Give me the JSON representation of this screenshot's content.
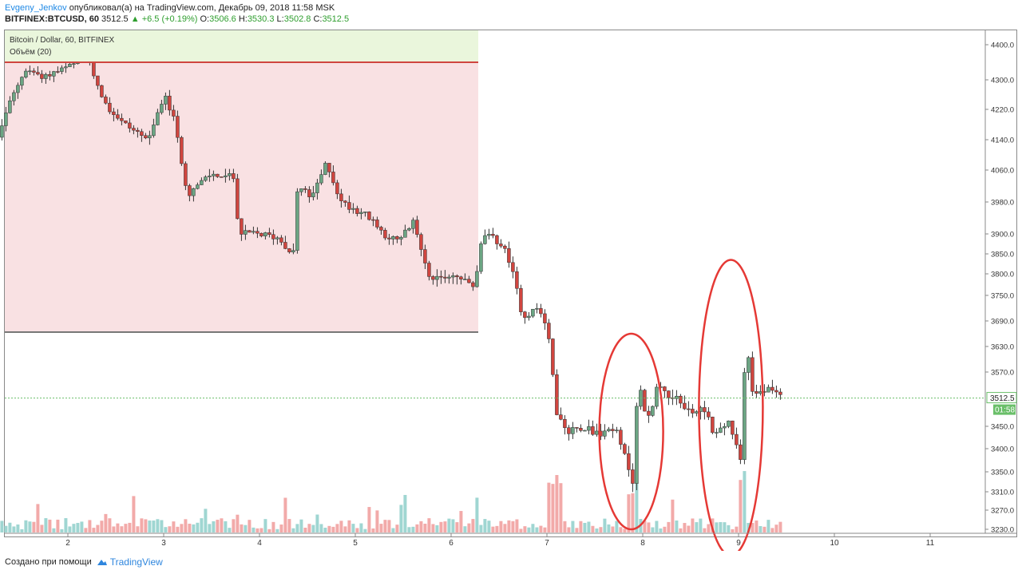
{
  "header": {
    "author": "Evgeny_Jenkov",
    "published_text": "опубликовал(а) на TradingView.com, Декабрь 09, 2018 11:58 MSK",
    "symbol": "BITFINEX:BTCUSD, 60",
    "last": "3512.5",
    "change": "▲ +6.5 (+0.19%)",
    "o_label": "O:",
    "o_value": "3506.6",
    "h_label": "H:",
    "h_value": "3530.3",
    "l_label": "L:",
    "l_value": "3502.8",
    "c_label": "C:",
    "c_value": "3512.5"
  },
  "legend": {
    "title": "Bitcoin / Dollar, 60, BITFINEX",
    "indicator": "Объём (20)"
  },
  "footer": {
    "created_text": "Создано при помощи",
    "brand": "TradingView"
  },
  "price_tag": {
    "price": "3512.5",
    "countdown": "01:58"
  },
  "colors": {
    "up": "#6ba583",
    "down": "#d0453f",
    "up_volume": "#9fd6d2",
    "down_volume": "#f2aaa9",
    "zone_fill": "#f9e1e3",
    "legend_fill": "#eaf6dc",
    "circle": "#e53935",
    "last_line": "#6abf69"
  },
  "chart_data": {
    "type": "candlestick",
    "title": "Bitcoin / Dollar, 60, BITFINEX",
    "y_axis": {
      "ticks": [
        4400.0,
        4300.0,
        4220.0,
        4140.0,
        4060.0,
        3980.0,
        3900.0,
        3850.0,
        3800.0,
        3750.0,
        3690.0,
        3630.0,
        3570.0,
        3450.0,
        3400.0,
        3350.0,
        3310.0,
        3270.0,
        3230.0
      ]
    },
    "x_axis": {
      "ticks": [
        "2",
        "3",
        "4",
        "5",
        "6",
        "7",
        "8",
        "9",
        "10",
        "11"
      ]
    },
    "last_price": 3512.5,
    "resistance_zone": {
      "from_day": 1.0,
      "to_day": 6.28,
      "top": 4350,
      "bottom": 3663
    },
    "ellipses": [
      {
        "center_day": 7.88,
        "price_center": 3445,
        "price_top": 3660,
        "price_bottom": 3230
      },
      {
        "center_day": 8.92,
        "price_center": 3505,
        "price_top": 3835,
        "price_bottom": 3175
      }
    ],
    "anchors": [
      [
        1.02,
        3990
      ],
      [
        1.2,
        4080
      ],
      [
        1.35,
        4210
      ],
      [
        1.55,
        4330
      ],
      [
        1.75,
        4310
      ],
      [
        1.95,
        4330
      ],
      [
        2.2,
        4360
      ],
      [
        2.4,
        4230
      ],
      [
        2.6,
        4180
      ],
      [
        2.85,
        4140
      ],
      [
        3.0,
        4260
      ],
      [
        3.1,
        4200
      ],
      [
        3.25,
        4000
      ],
      [
        3.5,
        4050
      ],
      [
        3.75,
        4040
      ],
      [
        3.78,
        3900
      ],
      [
        4.0,
        3900
      ],
      [
        4.2,
        3890
      ],
      [
        4.35,
        3850
      ],
      [
        4.4,
        4020
      ],
      [
        4.55,
        3990
      ],
      [
        4.7,
        4080
      ],
      [
        4.85,
        3980
      ],
      [
        5.1,
        3950
      ],
      [
        5.3,
        3900
      ],
      [
        5.45,
        3880
      ],
      [
        5.6,
        3930
      ],
      [
        5.8,
        3780
      ],
      [
        6.0,
        3800
      ],
      [
        6.25,
        3770
      ],
      [
        6.33,
        3900
      ],
      [
        6.5,
        3880
      ],
      [
        6.6,
        3840
      ],
      [
        6.75,
        3700
      ],
      [
        6.9,
        3720
      ],
      [
        7.0,
        3680
      ],
      [
        7.1,
        3480
      ],
      [
        7.2,
        3440
      ],
      [
        7.4,
        3450
      ],
      [
        7.55,
        3430
      ],
      [
        7.7,
        3450
      ],
      [
        7.8,
        3390
      ],
      [
        7.9,
        3330
      ],
      [
        7.95,
        3550
      ],
      [
        8.05,
        3460
      ],
      [
        8.15,
        3540
      ],
      [
        8.35,
        3510
      ],
      [
        8.5,
        3480
      ],
      [
        8.65,
        3490
      ],
      [
        8.75,
        3430
      ],
      [
        8.9,
        3460
      ],
      [
        9.02,
        3370
      ],
      [
        9.08,
        3650
      ],
      [
        9.15,
        3520
      ],
      [
        9.3,
        3530
      ],
      [
        9.45,
        3512
      ]
    ]
  }
}
